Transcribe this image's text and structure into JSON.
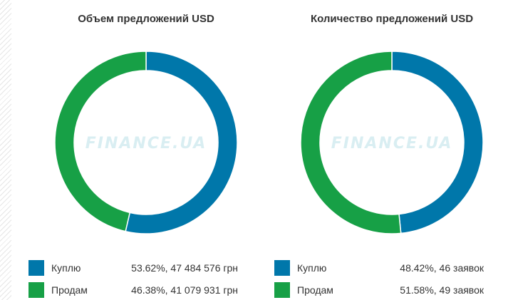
{
  "colors": {
    "buy": "#0077aa",
    "sell": "#17a046",
    "watermark": "#d9eef2",
    "text": "#333333"
  },
  "watermark_text": "FINANCE.UA",
  "chart_data": [
    {
      "type": "pie",
      "title": "Объем предложений USD",
      "categories": [
        "Куплю",
        "Продам"
      ],
      "values": [
        53.62,
        46.38
      ],
      "value_labels": [
        "53.62%, 47 484 576 грн",
        "46.38%, 41 079 931 грн"
      ],
      "donut": true,
      "legend_position": "bottom"
    },
    {
      "type": "pie",
      "title": "Количество предложений USD",
      "categories": [
        "Куплю",
        "Продам"
      ],
      "values": [
        48.42,
        51.58
      ],
      "value_labels": [
        "48.42%, 46 заявок",
        "51.58%, 49 заявок"
      ],
      "donut": true,
      "legend_position": "bottom"
    }
  ]
}
